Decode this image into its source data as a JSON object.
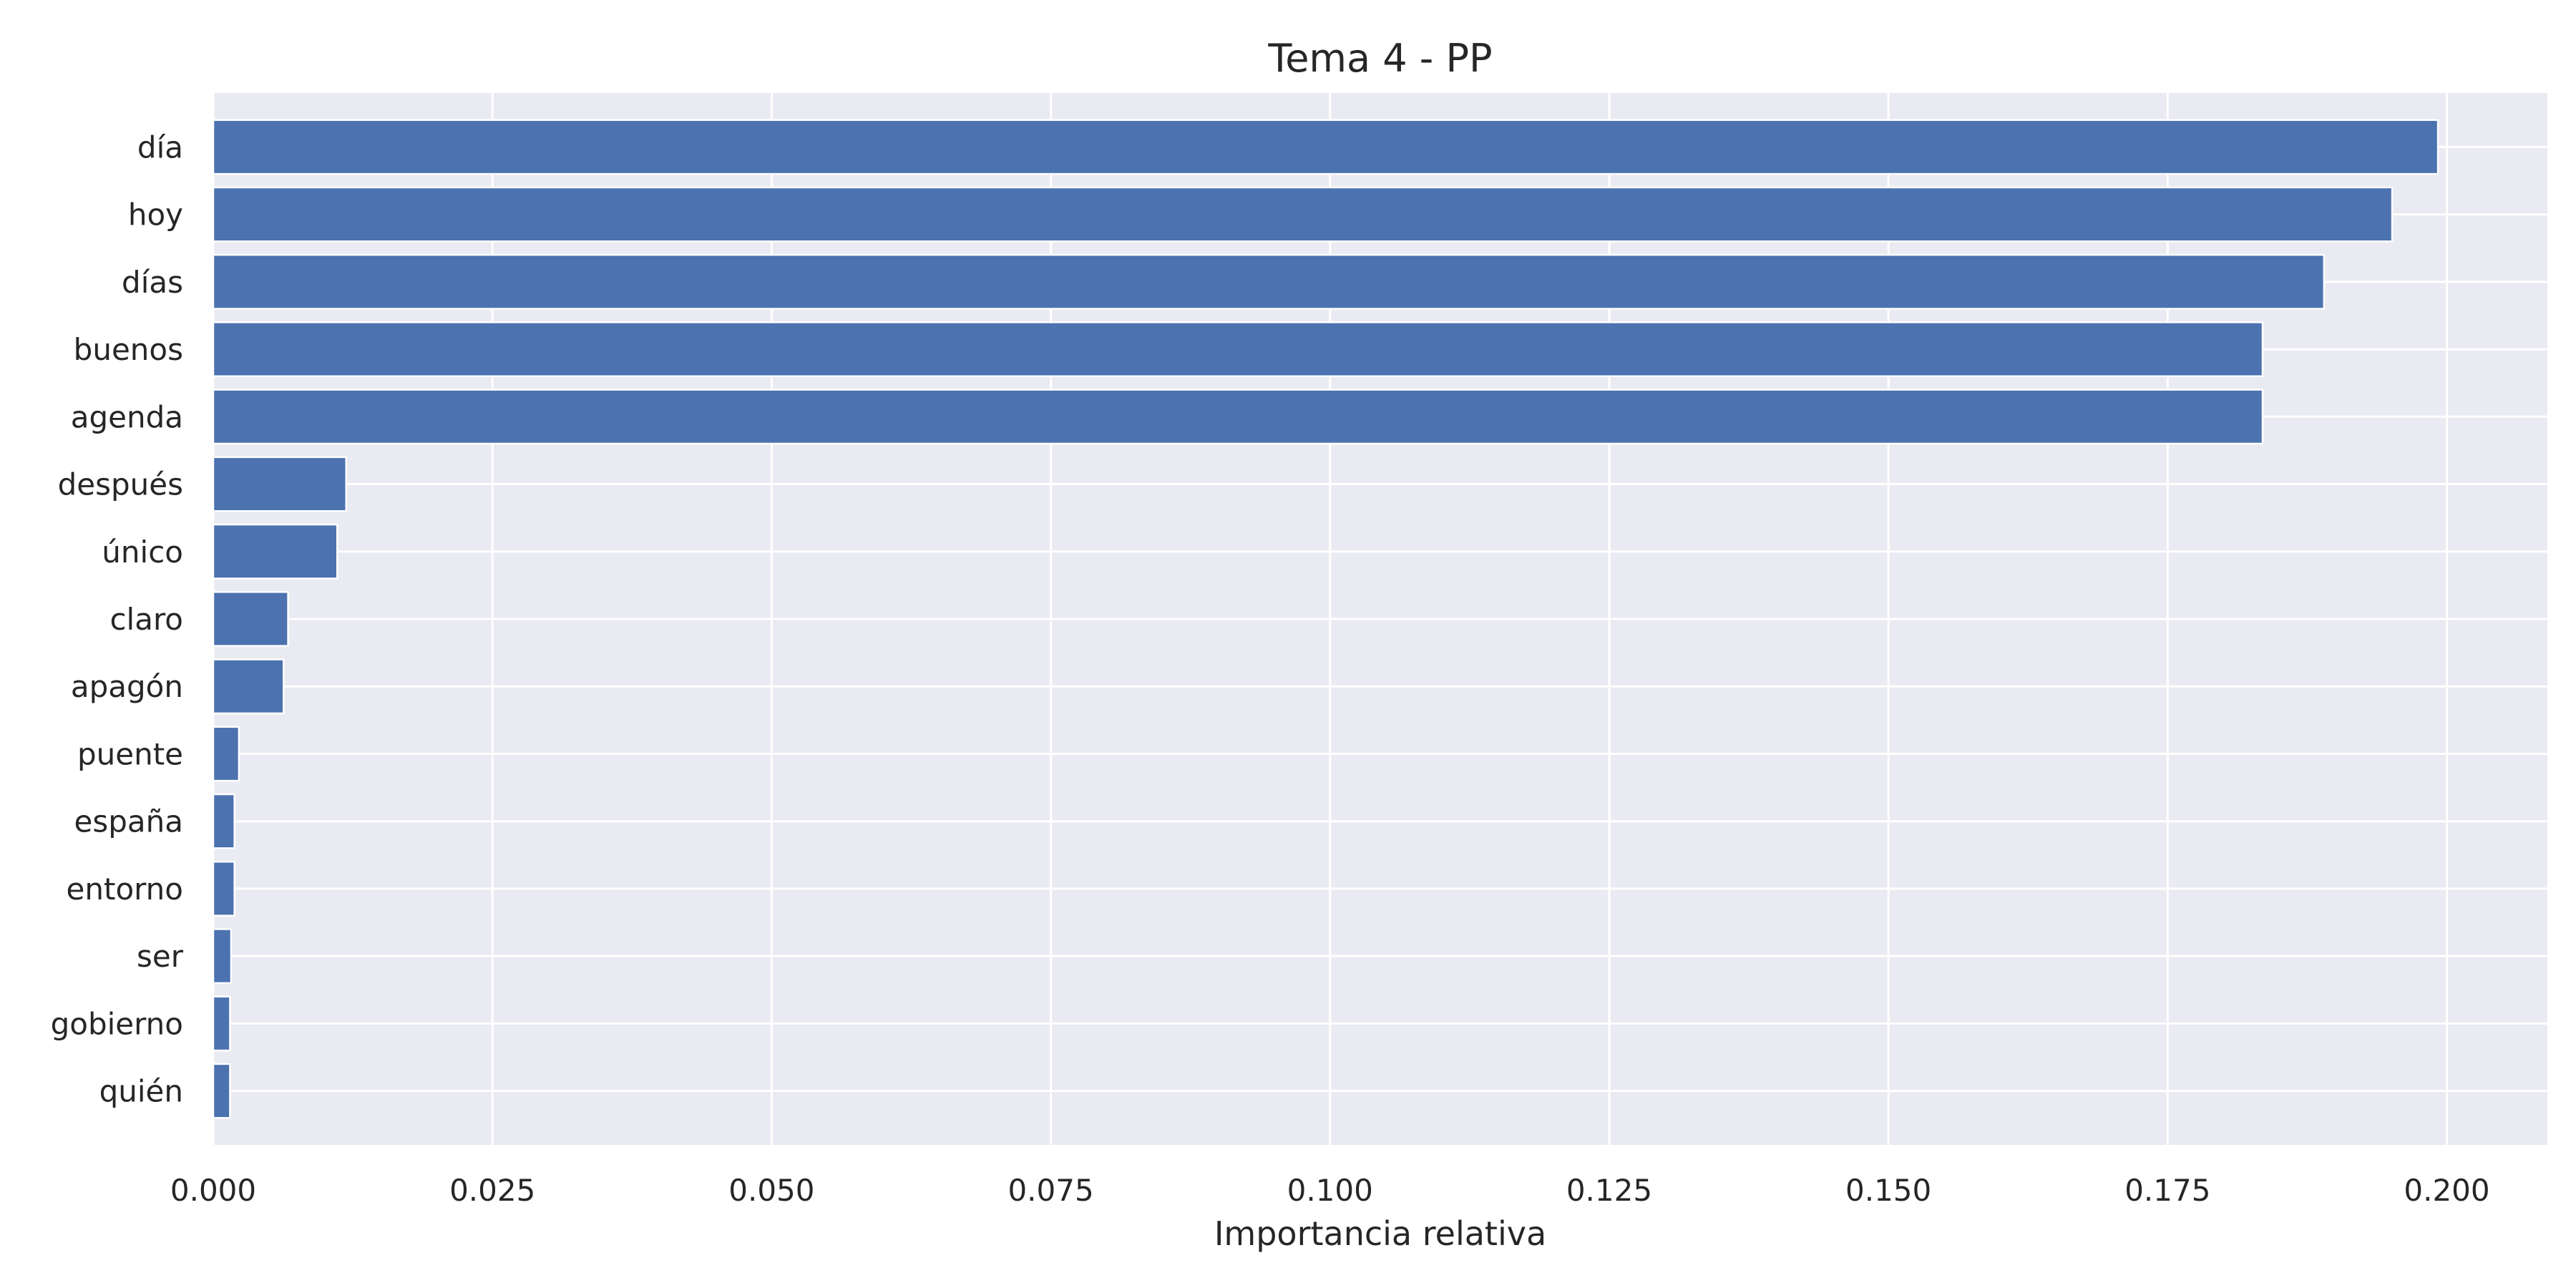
{
  "chart_data": {
    "type": "bar",
    "orientation": "horizontal",
    "title": "Tema 4 - PP",
    "xlabel": "Importancia relativa",
    "ylabel": "",
    "xlim": [
      0,
      0.209
    ],
    "xticks": [
      0.0,
      0.025,
      0.05,
      0.075,
      0.1,
      0.125,
      0.15,
      0.175,
      0.2
    ],
    "xtick_labels": [
      "0.000",
      "0.025",
      "0.050",
      "0.075",
      "0.100",
      "0.125",
      "0.150",
      "0.175",
      "0.200"
    ],
    "grid": true,
    "bar_color": "#4C72B0",
    "background_color": "#EAEAF2",
    "categories": [
      "día",
      "hoy",
      "días",
      "buenos",
      "agenda",
      "después",
      "único",
      "claro",
      "apagón",
      "puente",
      "españa",
      "entorno",
      "ser",
      "gobierno",
      "quién"
    ],
    "values": [
      0.1992,
      0.1951,
      0.189,
      0.1835,
      0.1835,
      0.0119,
      0.0111,
      0.0067,
      0.0063,
      0.0023,
      0.0019,
      0.0019,
      0.0016,
      0.0015,
      0.0015
    ]
  }
}
